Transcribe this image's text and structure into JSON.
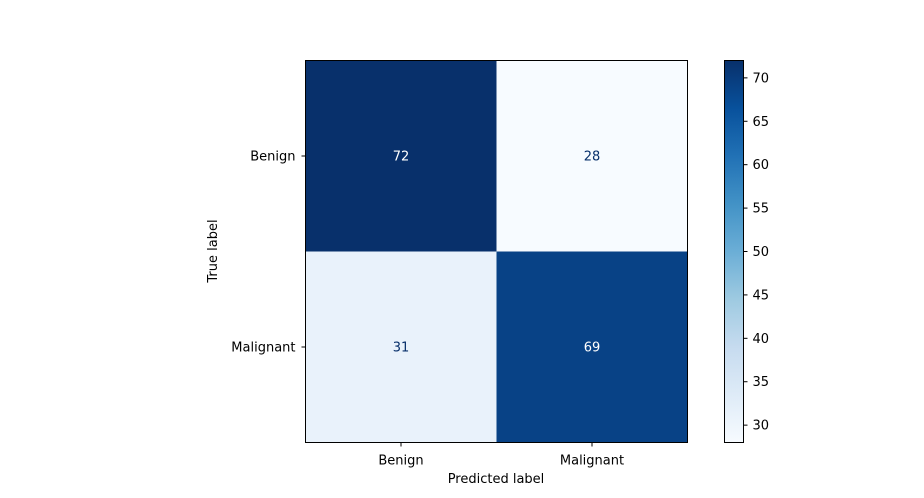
{
  "chart_data": {
    "type": "heatmap",
    "title": "",
    "xlabel": "Predicted label",
    "ylabel": "True label",
    "x_categories": [
      "Benign",
      "Malignant"
    ],
    "y_categories": [
      "Benign",
      "Malignant"
    ],
    "values": [
      [
        72,
        28
      ],
      [
        31,
        69
      ]
    ],
    "colormap": "Blues",
    "colorbar": {
      "range": [
        28,
        72
      ],
      "ticks": [
        30,
        35,
        40,
        45,
        50,
        55,
        60,
        65,
        70
      ]
    },
    "cell_text_colors": {
      "dark_cell": "#ffffff",
      "light_cell": "#08306b"
    }
  }
}
